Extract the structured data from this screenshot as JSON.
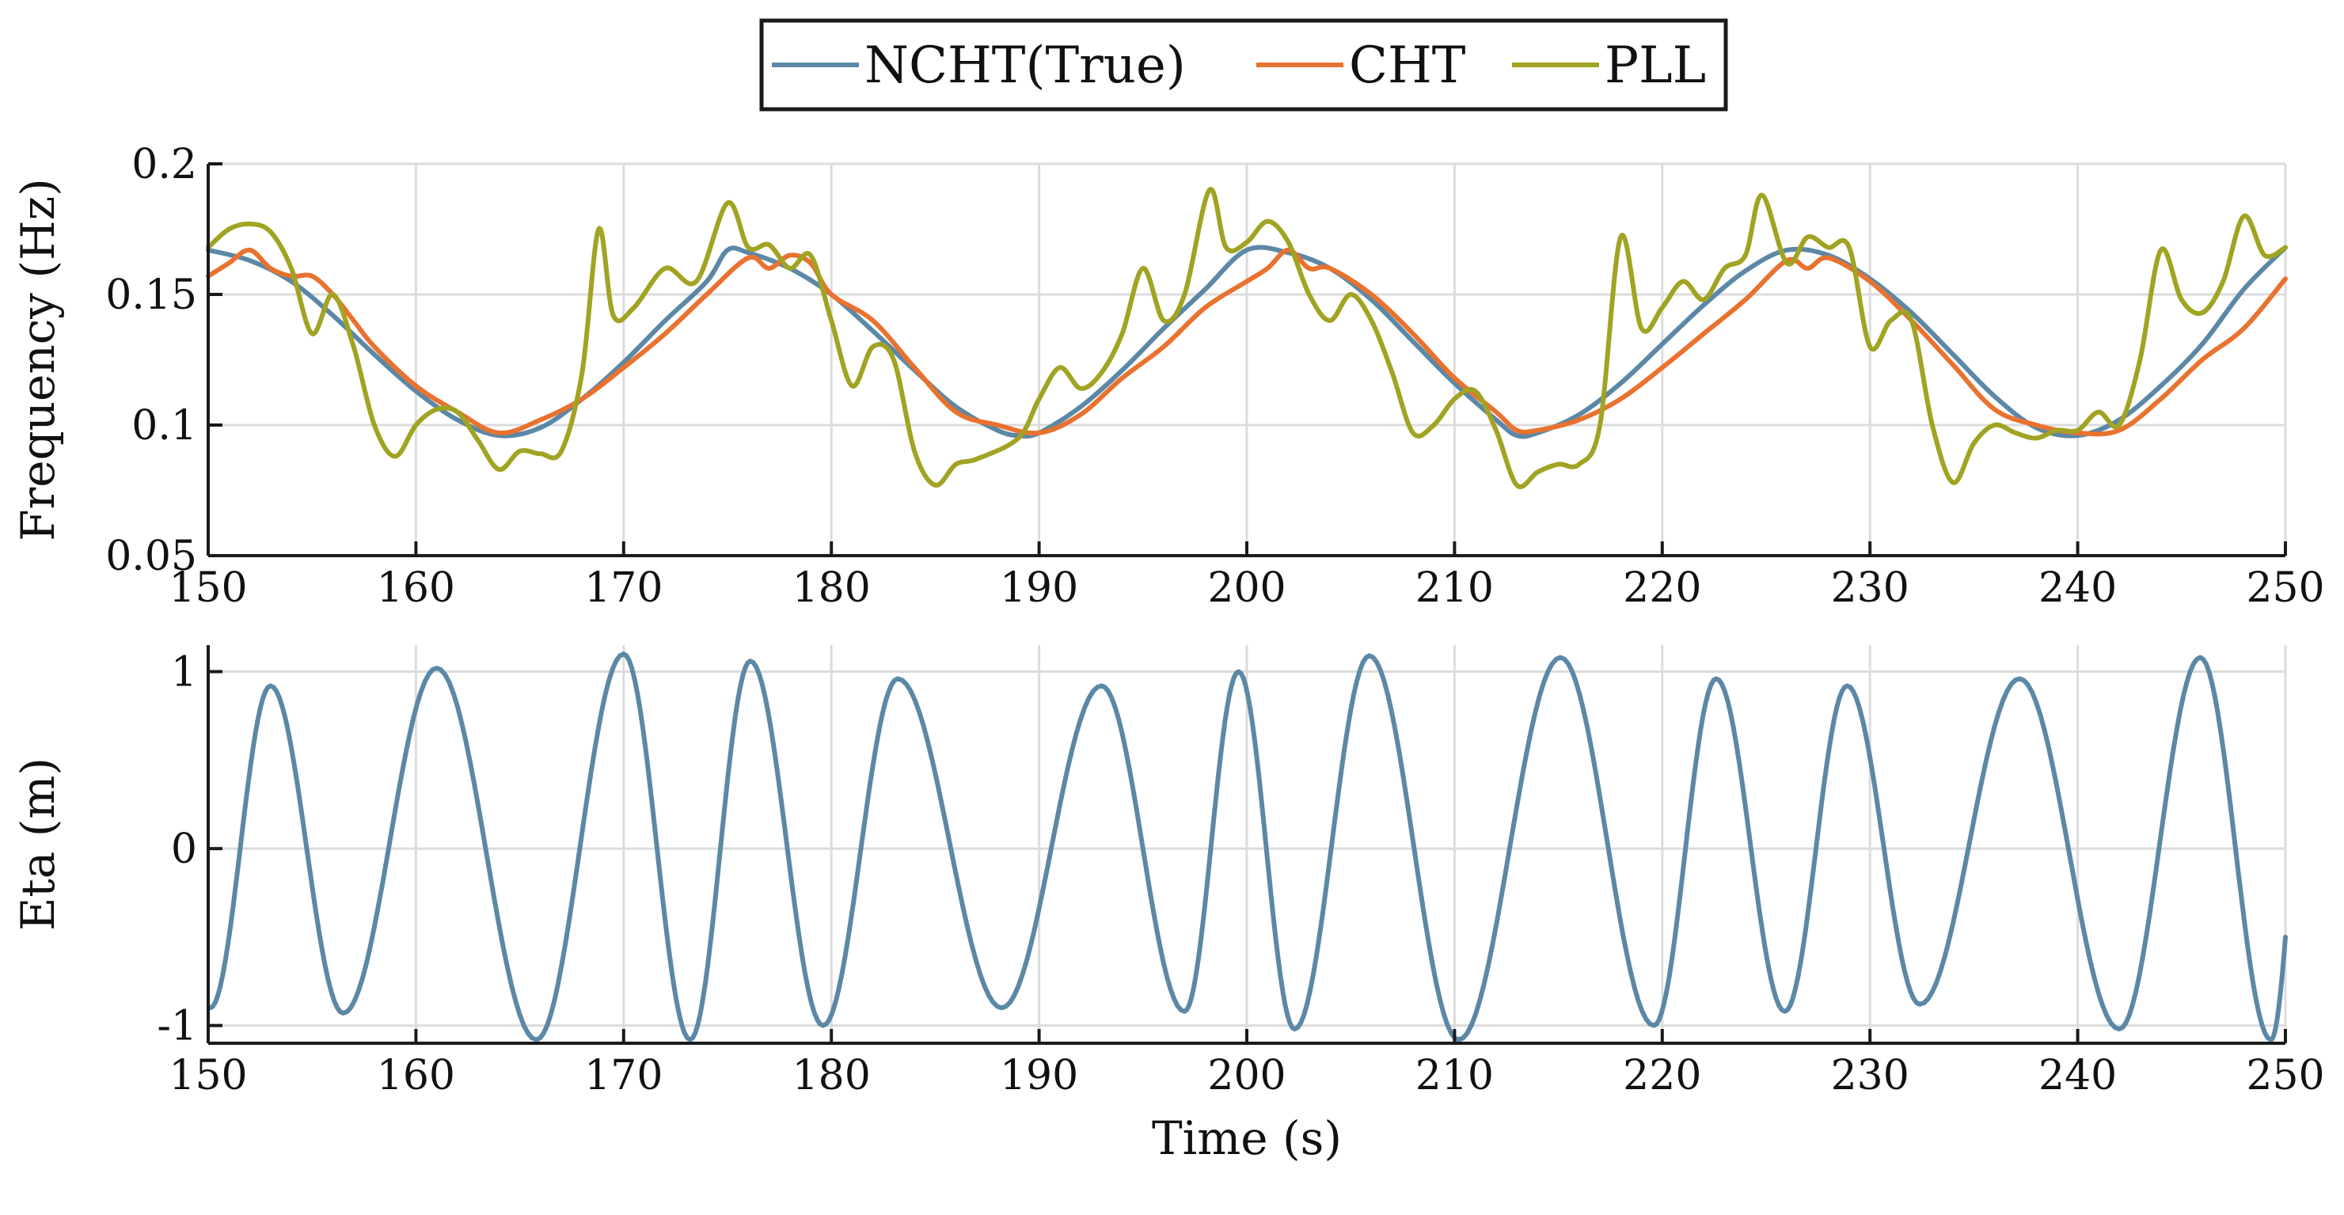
{
  "chart_data": [
    {
      "type": "line",
      "ylabel": "Frequency (Hz)",
      "xlabel": "",
      "xlim": [
        150,
        250
      ],
      "ylim": [
        0.05,
        0.2
      ],
      "xticks": [
        150,
        160,
        170,
        180,
        190,
        200,
        210,
        220,
        230,
        240,
        250
      ],
      "xtick_labels": [
        "150",
        "160",
        "170",
        "180",
        "190",
        "200",
        "210",
        "220",
        "230",
        "240",
        "250"
      ],
      "yticks": [
        0.05,
        0.1,
        0.15,
        0.2
      ],
      "ytick_labels": [
        "0.05",
        "0.1",
        "0.15",
        "0.2"
      ],
      "grid": true,
      "legend": "top-center",
      "series": [
        {
          "name": "NCHT(True)",
          "color": "#5b88a6",
          "x": [
            150,
            152,
            154,
            156,
            158,
            160,
            162,
            164,
            166,
            168,
            170,
            172,
            174,
            175,
            176,
            178,
            180,
            182,
            184,
            186,
            188,
            189,
            190,
            192,
            194,
            196,
            198,
            200,
            202,
            204,
            206,
            208,
            210,
            212,
            213,
            214,
            216,
            218,
            220,
            222,
            224,
            226,
            228,
            230,
            232,
            234,
            236,
            238,
            240,
            242,
            244,
            246,
            248,
            250
          ],
          "y": [
            0.167,
            0.163,
            0.155,
            0.142,
            0.127,
            0.113,
            0.102,
            0.096,
            0.099,
            0.11,
            0.124,
            0.14,
            0.155,
            0.167,
            0.166,
            0.16,
            0.15,
            0.136,
            0.121,
            0.107,
            0.098,
            0.096,
            0.097,
            0.107,
            0.121,
            0.137,
            0.152,
            0.167,
            0.166,
            0.16,
            0.148,
            0.132,
            0.116,
            0.102,
            0.096,
            0.097,
            0.104,
            0.116,
            0.131,
            0.146,
            0.159,
            0.167,
            0.165,
            0.156,
            0.143,
            0.127,
            0.111,
            0.099,
            0.096,
            0.102,
            0.115,
            0.131,
            0.152,
            0.168
          ]
        },
        {
          "name": "CHT",
          "color": "#e9722f",
          "x": [
            150,
            151,
            152,
            153,
            154,
            155,
            156,
            157,
            158,
            160,
            162,
            164,
            166,
            168,
            170,
            172,
            174,
            176,
            177,
            178,
            179,
            180,
            182,
            184,
            186,
            188,
            190,
            192,
            194,
            196,
            198,
            200,
            201,
            202,
            203,
            204,
            206,
            208,
            210,
            212,
            213,
            214,
            216,
            218,
            220,
            222,
            224,
            226,
            227,
            228,
            230,
            232,
            234,
            236,
            238,
            240,
            242,
            244,
            246,
            248,
            250
          ],
          "y": [
            0.157,
            0.162,
            0.167,
            0.16,
            0.157,
            0.157,
            0.15,
            0.14,
            0.13,
            0.115,
            0.105,
            0.097,
            0.102,
            0.11,
            0.122,
            0.135,
            0.15,
            0.164,
            0.16,
            0.165,
            0.162,
            0.15,
            0.14,
            0.122,
            0.105,
            0.1,
            0.097,
            0.104,
            0.118,
            0.13,
            0.145,
            0.155,
            0.16,
            0.167,
            0.16,
            0.16,
            0.15,
            0.135,
            0.118,
            0.105,
            0.098,
            0.098,
            0.102,
            0.11,
            0.122,
            0.135,
            0.148,
            0.163,
            0.16,
            0.164,
            0.155,
            0.14,
            0.123,
            0.106,
            0.1,
            0.097,
            0.098,
            0.11,
            0.125,
            0.137,
            0.156
          ]
        },
        {
          "name": "PLL",
          "color": "#a1a322",
          "x": [
            150,
            151,
            152,
            153,
            154,
            155,
            156,
            157,
            158,
            159,
            160,
            161,
            162,
            163,
            164,
            165,
            166,
            167,
            168,
            168.8,
            169.5,
            170.5,
            172,
            173.5,
            175,
            176,
            177,
            178,
            179,
            180,
            181,
            182,
            183,
            184,
            185,
            186,
            187,
            189,
            190,
            191,
            192,
            193,
            194,
            195,
            196,
            197,
            198.2,
            199,
            200,
            201,
            202,
            203,
            204,
            205,
            206,
            207,
            208,
            209,
            210,
            211,
            212,
            213,
            214,
            215,
            216,
            217,
            218,
            219,
            220,
            221,
            222,
            223,
            224,
            224.8,
            226,
            227,
            228,
            229,
            230,
            231,
            232,
            233,
            234,
            235,
            236,
            237,
            238,
            239,
            240,
            241,
            242,
            243,
            244,
            245,
            246,
            247,
            248,
            249,
            250
          ],
          "y": [
            0.168,
            0.175,
            0.177,
            0.174,
            0.16,
            0.135,
            0.15,
            0.13,
            0.1,
            0.088,
            0.1,
            0.106,
            0.105,
            0.094,
            0.083,
            0.09,
            0.089,
            0.09,
            0.12,
            0.175,
            0.142,
            0.145,
            0.16,
            0.155,
            0.185,
            0.168,
            0.169,
            0.16,
            0.165,
            0.14,
            0.115,
            0.13,
            0.125,
            0.09,
            0.077,
            0.085,
            0.087,
            0.095,
            0.11,
            0.122,
            0.114,
            0.12,
            0.135,
            0.16,
            0.14,
            0.15,
            0.19,
            0.168,
            0.17,
            0.178,
            0.17,
            0.15,
            0.14,
            0.15,
            0.14,
            0.12,
            0.097,
            0.1,
            0.11,
            0.113,
            0.098,
            0.077,
            0.082,
            0.085,
            0.085,
            0.1,
            0.172,
            0.137,
            0.145,
            0.155,
            0.148,
            0.16,
            0.165,
            0.188,
            0.162,
            0.172,
            0.168,
            0.168,
            0.13,
            0.14,
            0.14,
            0.1,
            0.078,
            0.093,
            0.1,
            0.097,
            0.095,
            0.098,
            0.098,
            0.105,
            0.1,
            0.125,
            0.167,
            0.148,
            0.143,
            0.155,
            0.18,
            0.165,
            0.168
          ]
        }
      ]
    },
    {
      "type": "line",
      "ylabel": "Eta (m)",
      "xlabel": "Time (s)",
      "xlim": [
        150,
        250
      ],
      "ylim": [
        -1.1,
        1.15
      ],
      "xticks": [
        150,
        160,
        170,
        180,
        190,
        200,
        210,
        220,
        230,
        240,
        250
      ],
      "xtick_labels": [
        "150",
        "160",
        "170",
        "180",
        "190",
        "200",
        "210",
        "220",
        "230",
        "240",
        "250"
      ],
      "yticks": [
        -1,
        0,
        1
      ],
      "ytick_labels": [
        "-1",
        "0",
        "1"
      ],
      "grid": true,
      "series": [
        {
          "name": "Eta",
          "color": "#5b88a6",
          "extrema": [
            {
              "t": 150.1,
              "v": -0.9
            },
            {
              "t": 153.0,
              "v": 0.92
            },
            {
              "t": 156.5,
              "v": -0.93
            },
            {
              "t": 161.0,
              "v": 1.02
            },
            {
              "t": 165.8,
              "v": -1.08
            },
            {
              "t": 170.0,
              "v": 1.1
            },
            {
              "t": 173.2,
              "v": -1.08
            },
            {
              "t": 176.1,
              "v": 1.06
            },
            {
              "t": 179.6,
              "v": -1.0
            },
            {
              "t": 183.2,
              "v": 0.96
            },
            {
              "t": 188.2,
              "v": -0.9
            },
            {
              "t": 193.0,
              "v": 0.92
            },
            {
              "t": 197.0,
              "v": -0.92
            },
            {
              "t": 199.6,
              "v": 1.0
            },
            {
              "t": 202.3,
              "v": -1.02
            },
            {
              "t": 205.9,
              "v": 1.09
            },
            {
              "t": 210.2,
              "v": -1.08
            },
            {
              "t": 215.1,
              "v": 1.08
            },
            {
              "t": 219.6,
              "v": -1.0
            },
            {
              "t": 222.6,
              "v": 0.96
            },
            {
              "t": 225.9,
              "v": -0.92
            },
            {
              "t": 228.9,
              "v": 0.92
            },
            {
              "t": 232.4,
              "v": -0.88
            },
            {
              "t": 237.2,
              "v": 0.96
            },
            {
              "t": 242.0,
              "v": -1.02
            },
            {
              "t": 245.9,
              "v": 1.08
            },
            {
              "t": 249.3,
              "v": -1.08
            }
          ],
          "end": {
            "t": 250,
            "v": -0.5
          }
        }
      ]
    }
  ]
}
